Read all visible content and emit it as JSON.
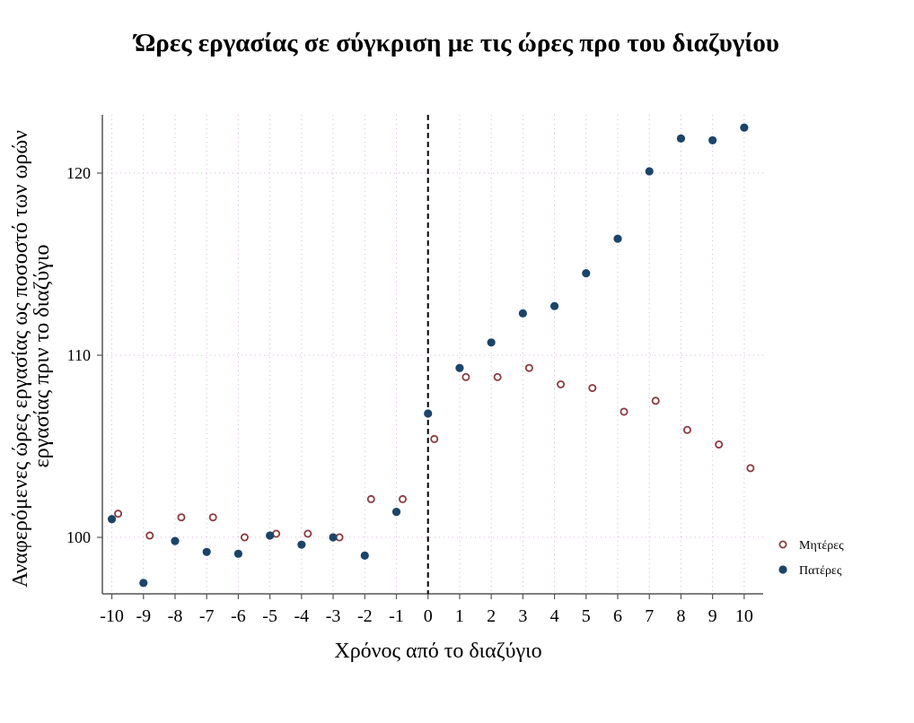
{
  "chart_data": {
    "type": "scatter",
    "title": "Ώρες εργασίας σε σύγκριση με τις ώρες προ του διαζυγίου",
    "xlabel": "Χρόνος από το διαζύγιο",
    "ylabel_lines": [
      "Αναφερόμενες ώρες εργασίας ως ποσοστό των ωρών",
      "εργασίας πριν το διαζύγιο"
    ],
    "xlim": [
      -10.3,
      10.6
    ],
    "ylim": [
      96.9,
      123.2
    ],
    "x_ticks": [
      -10,
      -9,
      -8,
      -7,
      -6,
      -5,
      -4,
      -3,
      -2,
      -1,
      0,
      1,
      2,
      3,
      4,
      5,
      6,
      7,
      8,
      9,
      10
    ],
    "y_ticks": [
      100,
      110,
      120
    ],
    "vertical_line_x": 0,
    "grid": "dotted",
    "legend_position": "bottom-right",
    "series": [
      {
        "name": "Μητέρες",
        "marker": "hollow-circle",
        "color": "#8b3a3f",
        "x": [
          -10,
          -9,
          -8,
          -7,
          -6,
          -5,
          -4,
          -3,
          -2,
          -1,
          0,
          1,
          2,
          3,
          4,
          5,
          6,
          7,
          8,
          9,
          10
        ],
        "y": [
          101.3,
          100.1,
          101.1,
          101.1,
          100.0,
          100.2,
          100.2,
          100.0,
          102.1,
          102.1,
          105.4,
          108.8,
          108.8,
          109.3,
          108.4,
          108.2,
          106.9,
          107.5,
          105.9,
          105.1,
          103.8
        ]
      },
      {
        "name": "Πατέρες",
        "marker": "filled-circle",
        "color": "#1b4469",
        "x": [
          -10,
          -9,
          -8,
          -7,
          -6,
          -5,
          -4,
          -3,
          -2,
          -1,
          0,
          1,
          2,
          3,
          4,
          5,
          6,
          7,
          8,
          9,
          10
        ],
        "y": [
          101.0,
          97.5,
          99.8,
          99.2,
          99.1,
          100.1,
          99.6,
          100.0,
          99.0,
          101.4,
          106.8,
          109.3,
          110.7,
          112.3,
          112.7,
          114.5,
          116.4,
          120.1,
          121.9,
          121.8,
          122.5
        ]
      }
    ]
  }
}
